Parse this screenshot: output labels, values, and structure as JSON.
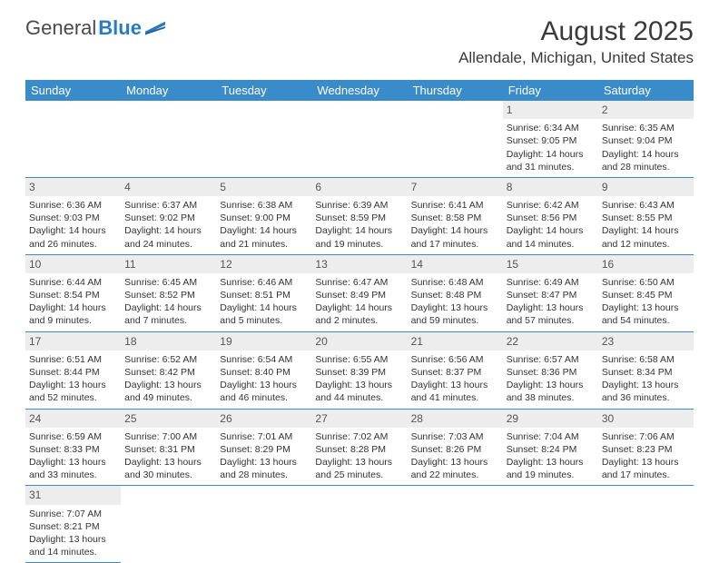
{
  "brand": {
    "part1": "General",
    "part2": "Blue"
  },
  "title": "August 2025",
  "location": "Allendale, Michigan, United States",
  "colors": {
    "header_bg": "#3a8bc9",
    "header_text": "#ffffff",
    "daynum_bg": "#ededed",
    "rule": "#3a8bc9",
    "text": "#333333"
  },
  "dow": [
    "Sunday",
    "Monday",
    "Tuesday",
    "Wednesday",
    "Thursday",
    "Friday",
    "Saturday"
  ],
  "weeks": [
    [
      null,
      null,
      null,
      null,
      null,
      {
        "n": "1",
        "sr": "Sunrise: 6:34 AM",
        "ss": "Sunset: 9:05 PM",
        "d1": "Daylight: 14 hours",
        "d2": "and 31 minutes."
      },
      {
        "n": "2",
        "sr": "Sunrise: 6:35 AM",
        "ss": "Sunset: 9:04 PM",
        "d1": "Daylight: 14 hours",
        "d2": "and 28 minutes."
      }
    ],
    [
      {
        "n": "3",
        "sr": "Sunrise: 6:36 AM",
        "ss": "Sunset: 9:03 PM",
        "d1": "Daylight: 14 hours",
        "d2": "and 26 minutes."
      },
      {
        "n": "4",
        "sr": "Sunrise: 6:37 AM",
        "ss": "Sunset: 9:02 PM",
        "d1": "Daylight: 14 hours",
        "d2": "and 24 minutes."
      },
      {
        "n": "5",
        "sr": "Sunrise: 6:38 AM",
        "ss": "Sunset: 9:00 PM",
        "d1": "Daylight: 14 hours",
        "d2": "and 21 minutes."
      },
      {
        "n": "6",
        "sr": "Sunrise: 6:39 AM",
        "ss": "Sunset: 8:59 PM",
        "d1": "Daylight: 14 hours",
        "d2": "and 19 minutes."
      },
      {
        "n": "7",
        "sr": "Sunrise: 6:41 AM",
        "ss": "Sunset: 8:58 PM",
        "d1": "Daylight: 14 hours",
        "d2": "and 17 minutes."
      },
      {
        "n": "8",
        "sr": "Sunrise: 6:42 AM",
        "ss": "Sunset: 8:56 PM",
        "d1": "Daylight: 14 hours",
        "d2": "and 14 minutes."
      },
      {
        "n": "9",
        "sr": "Sunrise: 6:43 AM",
        "ss": "Sunset: 8:55 PM",
        "d1": "Daylight: 14 hours",
        "d2": "and 12 minutes."
      }
    ],
    [
      {
        "n": "10",
        "sr": "Sunrise: 6:44 AM",
        "ss": "Sunset: 8:54 PM",
        "d1": "Daylight: 14 hours",
        "d2": "and 9 minutes."
      },
      {
        "n": "11",
        "sr": "Sunrise: 6:45 AM",
        "ss": "Sunset: 8:52 PM",
        "d1": "Daylight: 14 hours",
        "d2": "and 7 minutes."
      },
      {
        "n": "12",
        "sr": "Sunrise: 6:46 AM",
        "ss": "Sunset: 8:51 PM",
        "d1": "Daylight: 14 hours",
        "d2": "and 5 minutes."
      },
      {
        "n": "13",
        "sr": "Sunrise: 6:47 AM",
        "ss": "Sunset: 8:49 PM",
        "d1": "Daylight: 14 hours",
        "d2": "and 2 minutes."
      },
      {
        "n": "14",
        "sr": "Sunrise: 6:48 AM",
        "ss": "Sunset: 8:48 PM",
        "d1": "Daylight: 13 hours",
        "d2": "and 59 minutes."
      },
      {
        "n": "15",
        "sr": "Sunrise: 6:49 AM",
        "ss": "Sunset: 8:47 PM",
        "d1": "Daylight: 13 hours",
        "d2": "and 57 minutes."
      },
      {
        "n": "16",
        "sr": "Sunrise: 6:50 AM",
        "ss": "Sunset: 8:45 PM",
        "d1": "Daylight: 13 hours",
        "d2": "and 54 minutes."
      }
    ],
    [
      {
        "n": "17",
        "sr": "Sunrise: 6:51 AM",
        "ss": "Sunset: 8:44 PM",
        "d1": "Daylight: 13 hours",
        "d2": "and 52 minutes."
      },
      {
        "n": "18",
        "sr": "Sunrise: 6:52 AM",
        "ss": "Sunset: 8:42 PM",
        "d1": "Daylight: 13 hours",
        "d2": "and 49 minutes."
      },
      {
        "n": "19",
        "sr": "Sunrise: 6:54 AM",
        "ss": "Sunset: 8:40 PM",
        "d1": "Daylight: 13 hours",
        "d2": "and 46 minutes."
      },
      {
        "n": "20",
        "sr": "Sunrise: 6:55 AM",
        "ss": "Sunset: 8:39 PM",
        "d1": "Daylight: 13 hours",
        "d2": "and 44 minutes."
      },
      {
        "n": "21",
        "sr": "Sunrise: 6:56 AM",
        "ss": "Sunset: 8:37 PM",
        "d1": "Daylight: 13 hours",
        "d2": "and 41 minutes."
      },
      {
        "n": "22",
        "sr": "Sunrise: 6:57 AM",
        "ss": "Sunset: 8:36 PM",
        "d1": "Daylight: 13 hours",
        "d2": "and 38 minutes."
      },
      {
        "n": "23",
        "sr": "Sunrise: 6:58 AM",
        "ss": "Sunset: 8:34 PM",
        "d1": "Daylight: 13 hours",
        "d2": "and 36 minutes."
      }
    ],
    [
      {
        "n": "24",
        "sr": "Sunrise: 6:59 AM",
        "ss": "Sunset: 8:33 PM",
        "d1": "Daylight: 13 hours",
        "d2": "and 33 minutes."
      },
      {
        "n": "25",
        "sr": "Sunrise: 7:00 AM",
        "ss": "Sunset: 8:31 PM",
        "d1": "Daylight: 13 hours",
        "d2": "and 30 minutes."
      },
      {
        "n": "26",
        "sr": "Sunrise: 7:01 AM",
        "ss": "Sunset: 8:29 PM",
        "d1": "Daylight: 13 hours",
        "d2": "and 28 minutes."
      },
      {
        "n": "27",
        "sr": "Sunrise: 7:02 AM",
        "ss": "Sunset: 8:28 PM",
        "d1": "Daylight: 13 hours",
        "d2": "and 25 minutes."
      },
      {
        "n": "28",
        "sr": "Sunrise: 7:03 AM",
        "ss": "Sunset: 8:26 PM",
        "d1": "Daylight: 13 hours",
        "d2": "and 22 minutes."
      },
      {
        "n": "29",
        "sr": "Sunrise: 7:04 AM",
        "ss": "Sunset: 8:24 PM",
        "d1": "Daylight: 13 hours",
        "d2": "and 19 minutes."
      },
      {
        "n": "30",
        "sr": "Sunrise: 7:06 AM",
        "ss": "Sunset: 8:23 PM",
        "d1": "Daylight: 13 hours",
        "d2": "and 17 minutes."
      }
    ],
    [
      {
        "n": "31",
        "sr": "Sunrise: 7:07 AM",
        "ss": "Sunset: 8:21 PM",
        "d1": "Daylight: 13 hours",
        "d2": "and 14 minutes."
      },
      null,
      null,
      null,
      null,
      null,
      null
    ]
  ]
}
